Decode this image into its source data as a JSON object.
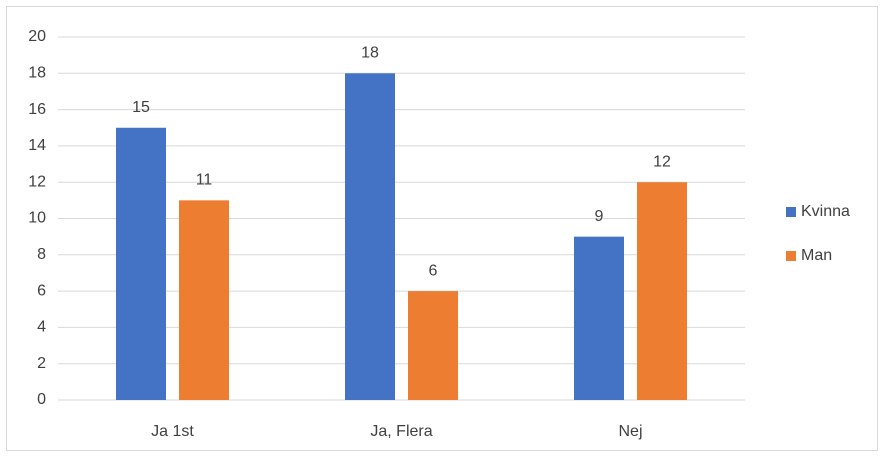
{
  "chart_data": {
    "type": "bar",
    "categories": [
      "Ja 1st",
      "Ja, Flera",
      "Nej"
    ],
    "series": [
      {
        "name": "Kvinna",
        "color": "#4472c4",
        "values": [
          15,
          18,
          9
        ]
      },
      {
        "name": "Man",
        "color": "#ed7d31",
        "values": [
          11,
          6,
          12
        ]
      }
    ],
    "ylim": [
      0,
      20
    ],
    "yticks": [
      0,
      2,
      4,
      6,
      8,
      10,
      12,
      14,
      16,
      18,
      20
    ],
    "grid": true,
    "legend": "right",
    "data_labels": true
  }
}
